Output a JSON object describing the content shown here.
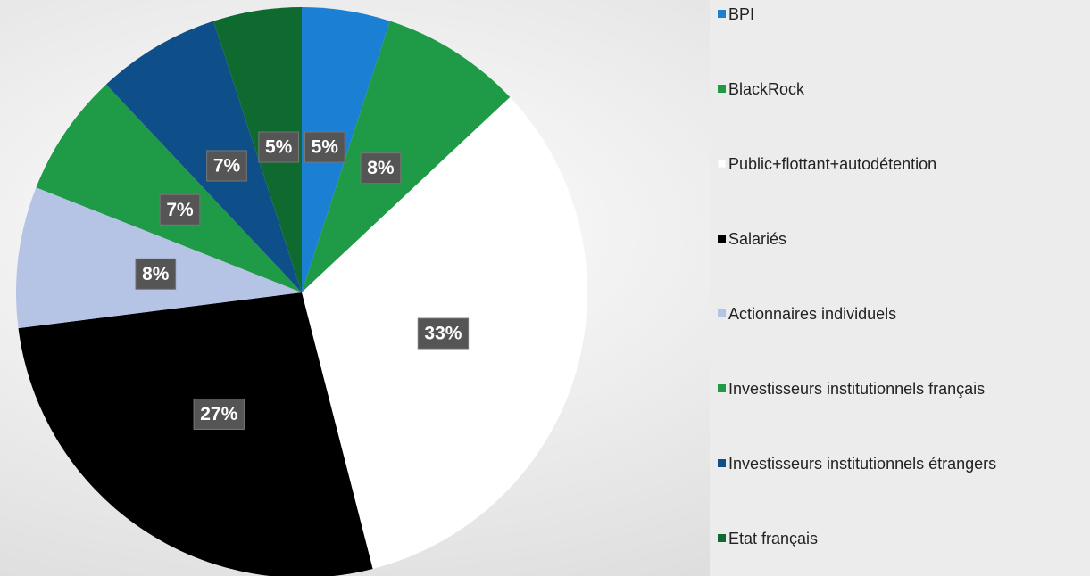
{
  "chart_data": {
    "type": "pie",
    "categories": [
      "BPI",
      "BlackRock",
      "Public+flottant+autodétention",
      "Salariés",
      "Actionnaires individuels",
      "Investisseurs institutionnels français",
      "Investisseurs institutionnels étrangers",
      "Etat français"
    ],
    "values": [
      5,
      8,
      33,
      27,
      8,
      7,
      7,
      5
    ],
    "value_labels": [
      "5%",
      "8%",
      "33%",
      "27%",
      "8%",
      "7%",
      "7%",
      "5%"
    ],
    "colors": [
      "#1b7fd3",
      "#1f9a47",
      "#ffffff",
      "#000000",
      "#b5c4e5",
      "#1f9a47",
      "#0e4e89",
      "#0f6a30"
    ],
    "legend": "right"
  }
}
